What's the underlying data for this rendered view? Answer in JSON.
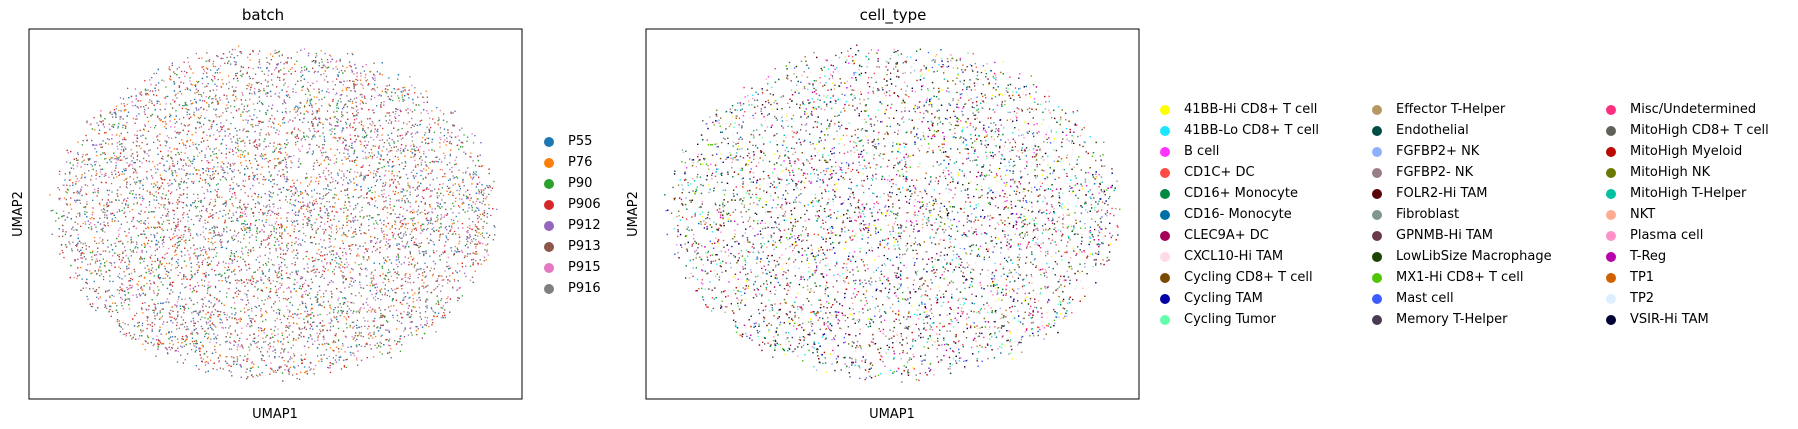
{
  "chart_data": [
    {
      "type": "scatter",
      "title": "batch",
      "xlabel": "UMAP1",
      "ylabel": "UMAP2",
      "grid": false,
      "legend_placement": "right",
      "categories": [
        {
          "name": "P55",
          "color": "#1f77b4"
        },
        {
          "name": "P76",
          "color": "#ff7f0e"
        },
        {
          "name": "P90",
          "color": "#2ca02c"
        },
        {
          "name": "P906",
          "color": "#d62728"
        },
        {
          "name": "P912",
          "color": "#9467bd"
        },
        {
          "name": "P913",
          "color": "#8c564b"
        },
        {
          "name": "P915",
          "color": "#e377c2"
        },
        {
          "name": "P916",
          "color": "#7f7f7f"
        }
      ]
    },
    {
      "type": "scatter",
      "title": "cell_type",
      "xlabel": "UMAP1",
      "ylabel": "UMAP2",
      "grid": false,
      "legend_placement": "right",
      "categories": [
        {
          "name": "41BB-Hi CD8+ T cell",
          "color": "#ffff00"
        },
        {
          "name": "41BB-Lo CD8+ T cell",
          "color": "#1ce6ff"
        },
        {
          "name": "B cell",
          "color": "#ff34ff"
        },
        {
          "name": "CD1C+ DC",
          "color": "#ff4a46"
        },
        {
          "name": "CD16+ Monocyte",
          "color": "#008941"
        },
        {
          "name": "CD16- Monocyte",
          "color": "#006fa6"
        },
        {
          "name": "CLEC9A+ DC",
          "color": "#a30059"
        },
        {
          "name": "CXCL10-Hi TAM",
          "color": "#ffdbe5"
        },
        {
          "name": "Cycling CD8+ T cell",
          "color": "#7a4900"
        },
        {
          "name": "Cycling TAM",
          "color": "#0000a6"
        },
        {
          "name": "Cycling Tumor",
          "color": "#63ffac"
        },
        {
          "name": "Effector T-Helper",
          "color": "#b79762"
        },
        {
          "name": "Endothelial",
          "color": "#004d43"
        },
        {
          "name": "FGFBP2+ NK",
          "color": "#8fb0ff"
        },
        {
          "name": "FGFBP2- NK",
          "color": "#997d87"
        },
        {
          "name": "FOLR2-Hi TAM",
          "color": "#5a0007"
        },
        {
          "name": "Fibroblast",
          "color": "#809693"
        },
        {
          "name": "GPNMB-Hi TAM",
          "color": "#6a3a4c"
        },
        {
          "name": "LowLibSize Macrophage",
          "color": "#1b4400"
        },
        {
          "name": "MX1-Hi CD8+ T cell",
          "color": "#4fc601"
        },
        {
          "name": "Mast cell",
          "color": "#3b5dff"
        },
        {
          "name": "Memory T-Helper",
          "color": "#4a3b53"
        },
        {
          "name": "Misc/Undetermined",
          "color": "#ff2f80"
        },
        {
          "name": "MitoHigh CD8+ T cell",
          "color": "#61615a"
        },
        {
          "name": "MitoHigh Myeloid",
          "color": "#ba0900"
        },
        {
          "name": "MitoHigh NK",
          "color": "#6b7900"
        },
        {
          "name": "MitoHigh T-Helper",
          "color": "#00c2a0"
        },
        {
          "name": "NKT",
          "color": "#ffaa92"
        },
        {
          "name": "Plasma cell",
          "color": "#ff90c9"
        },
        {
          "name": "T-Reg",
          "color": "#b903aa"
        },
        {
          "name": "TP1",
          "color": "#d16100"
        },
        {
          "name": "TP2",
          "color": "#ddefff"
        },
        {
          "name": "VSIR-Hi TAM",
          "color": "#000035"
        }
      ]
    }
  ]
}
